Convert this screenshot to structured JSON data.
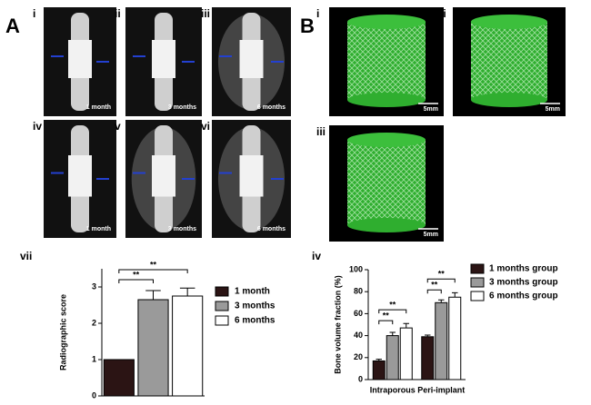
{
  "panels": {
    "A": "A",
    "B": "B",
    "a_labels": [
      "i",
      "ii",
      "iii",
      "iv",
      "v",
      "vi"
    ],
    "a_times": [
      "1 month",
      "3 months",
      "6 months",
      "1 month",
      "3 months",
      "6 months"
    ],
    "b_labels": [
      "i",
      "ii",
      "iii"
    ],
    "b_scales": [
      "5mm",
      "5mm",
      "5mm"
    ],
    "vii": "vii",
    "iv": "iv"
  },
  "chart_data": [
    {
      "type": "bar",
      "ylabel": "Radiographic score",
      "categories": [
        "1 month",
        "3 months",
        "6 months"
      ],
      "values": [
        1.0,
        2.65,
        2.75
      ],
      "errors": [
        0,
        0.25,
        0.22
      ],
      "colors": [
        "#2b1414",
        "#9a9a9a",
        "#ffffff"
      ],
      "ylim": [
        0,
        3.5
      ],
      "yticks": [
        0,
        1,
        2,
        3
      ],
      "annotations": [
        "**",
        "**"
      ]
    },
    {
      "type": "grouped-bar",
      "ylabel": "Bone volume fraction (%)",
      "categories": [
        "Intraporous",
        "Peri-implant"
      ],
      "series": [
        {
          "name": "1 months group",
          "color": "#2b1414",
          "values": [
            17,
            39
          ],
          "errors": [
            1.5,
            1.5
          ]
        },
        {
          "name": "3 months group",
          "color": "#9a9a9a",
          "values": [
            40,
            70
          ],
          "errors": [
            3,
            2.5
          ]
        },
        {
          "name": "6 months group",
          "color": "#ffffff",
          "values": [
            47,
            75
          ],
          "errors": [
            4,
            4
          ]
        }
      ],
      "ylim": [
        0,
        100
      ],
      "yticks": [
        0,
        20,
        40,
        60,
        80,
        100
      ],
      "annotations": [
        "**",
        "**",
        "**",
        "**"
      ]
    }
  ]
}
